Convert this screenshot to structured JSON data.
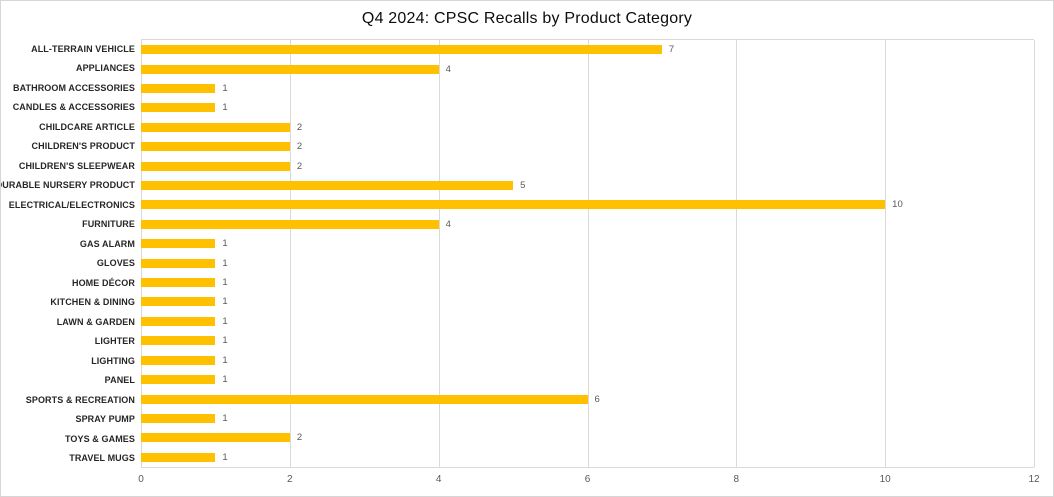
{
  "title": "Q4 2024: CPSC Recalls by Product Category",
  "colors": {
    "bar": "#FFC000",
    "gridline": "#D9D9D9",
    "category_label": "#262626",
    "value_label": "#595959",
    "tick_label": "#595959",
    "title": "#0D0D0D"
  },
  "chart_data": {
    "type": "bar",
    "orientation": "horizontal",
    "title": "Q4 2024: CPSC Recalls by Product Category",
    "categories": [
      "ALL-TERRAIN VEHICLE",
      "APPLIANCES",
      "BATHROOM ACCESSORIES",
      "CANDLES & ACCESSORIES",
      "CHILDCARE ARTICLE",
      "CHILDREN'S PRODUCT",
      "CHILDREN'S SLEEPWEAR",
      "DURABLE NURSERY PRODUCT",
      "ELECTRICAL/ELECTRONICS",
      "FURNITURE",
      "GAS ALARM",
      "GLOVES",
      "HOME DÉCOR",
      "KITCHEN & DINING",
      "LAWN & GARDEN",
      "LIGHTER",
      "LIGHTING",
      "PANEL",
      "SPORTS & RECREATION",
      "SPRAY PUMP",
      "TOYS & GAMES",
      "TRAVEL MUGS"
    ],
    "values": [
      7,
      4,
      1,
      1,
      2,
      2,
      2,
      5,
      10,
      4,
      1,
      1,
      1,
      1,
      1,
      1,
      1,
      1,
      6,
      1,
      2,
      1
    ],
    "xlabel": "",
    "ylabel": "",
    "xlim": [
      0,
      12
    ],
    "xticks": [
      0,
      2,
      4,
      6,
      8,
      10,
      12
    ],
    "grid": true,
    "data_labels": true,
    "legend": "none"
  }
}
